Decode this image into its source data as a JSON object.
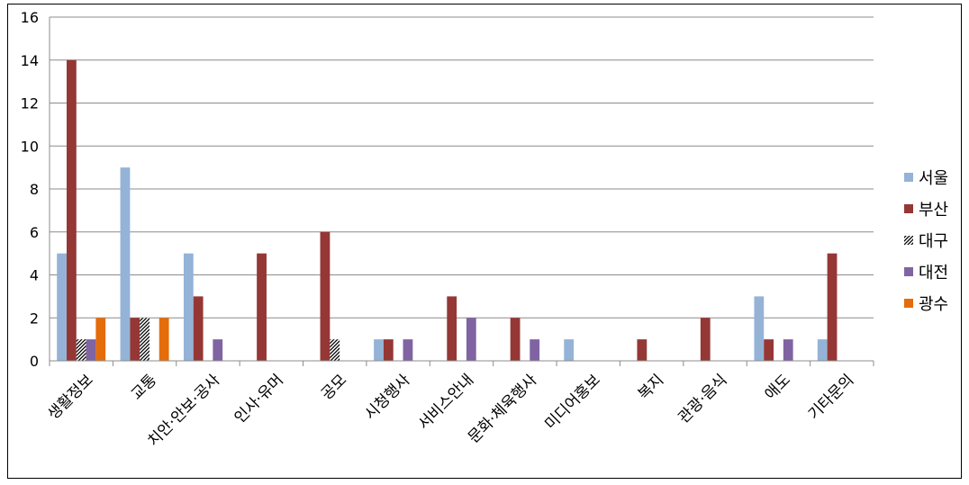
{
  "chart_data": {
    "type": "bar",
    "title": "",
    "xlabel": "",
    "ylabel": "",
    "ylim": [
      0,
      16
    ],
    "yticks": [
      0,
      2,
      4,
      6,
      8,
      10,
      12,
      14,
      16
    ],
    "grid": true,
    "legend_position": "right",
    "categories": [
      "생활정보",
      "교통",
      "치안·안보·공사",
      "인사·유머",
      "공모",
      "시청행사",
      "서비스안내",
      "문화·체육행사",
      "미디어홍보",
      "복지",
      "관광·음식",
      "애도",
      "기타문의"
    ],
    "series": [
      {
        "name": "서울",
        "color": "#95B3D7",
        "pattern": "solid",
        "values": [
          5,
          9,
          5,
          0,
          0,
          1,
          0,
          0,
          1,
          0,
          0,
          3,
          1
        ]
      },
      {
        "name": "부산",
        "color": "#953735",
        "pattern": "solid",
        "values": [
          14,
          2,
          3,
          5,
          6,
          1,
          3,
          2,
          0,
          1,
          2,
          1,
          5
        ]
      },
      {
        "name": "대구",
        "color": "#000000",
        "pattern": "hatch",
        "values": [
          1,
          2,
          0,
          0,
          1,
          0,
          0,
          0,
          0,
          0,
          0,
          0,
          0
        ]
      },
      {
        "name": "대전",
        "color": "#8064A2",
        "pattern": "solid",
        "values": [
          1,
          0,
          1,
          0,
          0,
          1,
          2,
          1,
          0,
          0,
          0,
          1,
          0
        ]
      },
      {
        "name": "광수",
        "color": "#E46C0A",
        "pattern": "solid",
        "values": [
          2,
          2,
          0,
          0,
          0,
          0,
          0,
          0,
          0,
          0,
          0,
          0,
          0
        ]
      }
    ]
  }
}
